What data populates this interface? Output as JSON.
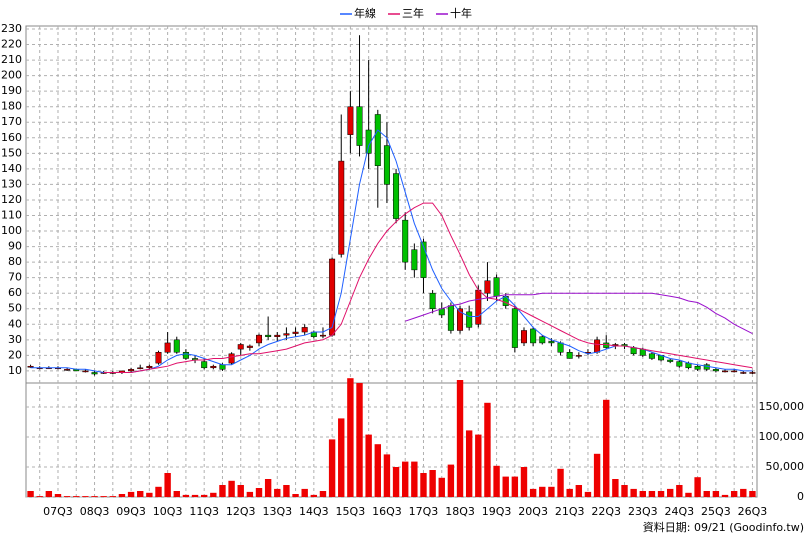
{
  "chart_data": {
    "type": "candlestick",
    "categories": [
      null,
      null,
      null,
      "07Q3",
      null,
      null,
      null,
      "08Q3",
      null,
      null,
      null,
      "09Q3",
      null,
      null,
      null,
      "10Q3",
      null,
      null,
      null,
      "11Q3",
      null,
      null,
      null,
      "12Q3",
      null,
      null,
      null,
      "13Q3",
      null,
      null,
      null,
      "14Q3",
      null,
      null,
      null,
      "15Q3",
      null,
      null,
      null,
      "16Q3",
      null,
      null,
      null,
      "17Q3",
      null,
      null,
      null,
      "18Q3",
      null,
      null,
      null,
      "19Q3",
      null,
      null,
      null,
      "20Q3",
      null,
      null,
      null,
      "21Q3",
      null,
      null,
      null,
      "22Q3",
      null,
      null,
      null,
      "23Q3",
      null,
      null,
      null,
      "24Q3",
      null,
      null,
      null,
      "25Q3",
      null,
      null,
      null,
      "26Q3"
    ],
    "ohlc": {
      "up_color": "#e00000",
      "down_color": "#00c000",
      "open": [
        13,
        12,
        12,
        12,
        11,
        11,
        10,
        9,
        9,
        9,
        9,
        10,
        12,
        12,
        15,
        22,
        30,
        22,
        18,
        16,
        12,
        14,
        15,
        24,
        25,
        28,
        33,
        32,
        33,
        34,
        35,
        35,
        33,
        33,
        85,
        162,
        180,
        165,
        175,
        155,
        137,
        107,
        88,
        93,
        60,
        50,
        52,
        36,
        48,
        40,
        60,
        70,
        58,
        50,
        28,
        37,
        32,
        29,
        28,
        22,
        20,
        22,
        22,
        28,
        27,
        27,
        25,
        24,
        21,
        20,
        17,
        16,
        15,
        13,
        14,
        11,
        10,
        10,
        9,
        9
      ],
      "high": [
        14,
        13,
        13,
        13,
        12,
        11,
        11,
        10,
        10,
        10,
        10,
        12,
        14,
        14,
        23,
        35,
        32,
        24,
        20,
        18,
        14,
        15,
        22,
        28,
        27,
        34,
        45,
        35,
        38,
        38,
        40,
        36,
        38,
        83,
        175,
        190,
        226,
        210,
        178,
        170,
        140,
        112,
        92,
        95,
        62,
        54,
        54,
        52,
        52,
        65,
        80,
        72,
        60,
        52,
        38,
        38,
        33,
        31,
        29,
        24,
        22,
        24,
        32,
        33,
        28,
        28,
        26,
        25,
        22,
        20,
        18,
        17,
        16,
        14,
        15,
        12,
        11,
        11,
        10,
        10
      ],
      "low": [
        12,
        11,
        12,
        11,
        10,
        10,
        9,
        7,
        8,
        8,
        8,
        9,
        11,
        11,
        14,
        21,
        21,
        17,
        15,
        11,
        11,
        10,
        14,
        20,
        23,
        26,
        30,
        29,
        30,
        32,
        33,
        31,
        31,
        32,
        83,
        150,
        148,
        140,
        115,
        118,
        105,
        75,
        70,
        60,
        47,
        44,
        34,
        34,
        36,
        38,
        55,
        55,
        50,
        22,
        26,
        26,
        27,
        26,
        20,
        18,
        18,
        20,
        21,
        24,
        24,
        24,
        20,
        19,
        17,
        16,
        15,
        12,
        11,
        10,
        10,
        9,
        9,
        9,
        8,
        8
      ],
      "close": [
        13,
        12,
        12,
        12,
        11,
        10,
        10,
        8,
        9,
        9,
        10,
        11,
        12,
        13,
        22,
        28,
        22,
        18,
        17,
        12,
        13,
        11,
        21,
        27,
        26,
        33,
        32,
        33,
        34,
        35,
        38,
        32,
        33,
        82,
        145,
        180,
        155,
        150,
        142,
        130,
        108,
        80,
        75,
        70,
        50,
        46,
        36,
        50,
        38,
        62,
        68,
        58,
        52,
        25,
        36,
        28,
        28,
        28,
        22,
        18,
        20,
        22,
        30,
        25,
        27,
        26,
        21,
        20,
        18,
        17,
        16,
        13,
        12,
        11,
        11,
        10,
        10,
        10,
        9,
        9
      ]
    },
    "series": [
      {
        "name": "年線",
        "color": "#1f5fff",
        "values": [
          12,
          12,
          12,
          12,
          12,
          11,
          11,
          10,
          9,
          9,
          9,
          9,
          10,
          11,
          13,
          17,
          20,
          21,
          20,
          18,
          16,
          14,
          14,
          17,
          20,
          24,
          27,
          29,
          31,
          32,
          33,
          35,
          35,
          38,
          60,
          95,
          130,
          155,
          165,
          160,
          145,
          125,
          105,
          90,
          75,
          63,
          55,
          48,
          45,
          45,
          50,
          55,
          58,
          52,
          45,
          38,
          33,
          30,
          28,
          26,
          23,
          21,
          22,
          24,
          26,
          26,
          25,
          24,
          22,
          20,
          18,
          17,
          15,
          14,
          13,
          12,
          11,
          11,
          10,
          10
        ]
      },
      {
        "name": "三年",
        "color": "#e0106a",
        "values": [
          null,
          null,
          null,
          null,
          null,
          null,
          null,
          null,
          9,
          9,
          9,
          9,
          10,
          11,
          12,
          13,
          15,
          16,
          17,
          17,
          18,
          18,
          19,
          20,
          21,
          21,
          22,
          23,
          24,
          26,
          28,
          29,
          30,
          33,
          40,
          55,
          70,
          82,
          92,
          100,
          106,
          111,
          115,
          118,
          118,
          110,
          97,
          85,
          72,
          62,
          57,
          56,
          54,
          51,
          48,
          45,
          42,
          39,
          36,
          33,
          30,
          28,
          27,
          27,
          26,
          26,
          25,
          24,
          23,
          22,
          21,
          20,
          19,
          18,
          17,
          16,
          15,
          14,
          13,
          12
        ]
      },
      {
        "name": "十年",
        "color": "#9a10cc",
        "values": [
          null,
          null,
          null,
          null,
          null,
          null,
          null,
          null,
          null,
          null,
          null,
          null,
          null,
          null,
          null,
          null,
          null,
          null,
          null,
          null,
          null,
          null,
          null,
          null,
          null,
          null,
          null,
          null,
          null,
          null,
          null,
          null,
          null,
          null,
          null,
          null,
          null,
          null,
          null,
          null,
          null,
          42,
          44,
          46,
          48,
          50,
          52,
          53,
          55,
          56,
          57,
          58,
          59,
          59,
          59,
          59,
          60,
          60,
          60,
          60,
          60,
          60,
          60,
          60,
          60,
          60,
          60,
          60,
          60,
          59,
          58,
          57,
          55,
          54,
          51,
          47,
          44,
          40,
          37,
          34
        ]
      }
    ],
    "ylim": [
      3.5,
      230
    ],
    "yticks": [
      10,
      20,
      30,
      40,
      50,
      60,
      70,
      80,
      90,
      100,
      110,
      120,
      130,
      140,
      150,
      160,
      170,
      180,
      190,
      200,
      210,
      220,
      230
    ],
    "volume": {
      "color": "#ee0000",
      "values": [
        10000,
        1500,
        10000,
        5000,
        1500,
        1500,
        1500,
        1500,
        1500,
        1500,
        5000,
        8500,
        10000,
        7000,
        17000,
        40000,
        10000,
        3500,
        3500,
        3500,
        7000,
        20000,
        27000,
        20000,
        8500,
        15000,
        30000,
        13500,
        20000,
        5000,
        13500,
        3500,
        10000,
        96000,
        131000,
        198000,
        190000,
        104000,
        88000,
        71000,
        50000,
        59000,
        59000,
        40000,
        45000,
        32000,
        54000,
        195000,
        111000,
        104000,
        157000,
        52000,
        34000,
        34000,
        50000,
        13500,
        17000,
        17000,
        47000,
        13500,
        20000,
        8500,
        72000,
        162000,
        30000,
        20000,
        13500,
        10000,
        10000,
        10000,
        13500,
        20000,
        7000,
        33000,
        10000,
        10000,
        3500,
        10000,
        13500,
        10000
      ],
      "ylim": [
        0,
        185000
      ],
      "yticks": [
        0,
        {
          "value": 50000,
          "label": "50,000"
        },
        {
          "value": 100000,
          "label": "100,000"
        },
        {
          "value": 150000,
          "label": "150,000"
        }
      ]
    },
    "grid": true,
    "source": "資料日期: 09/21  (Goodinfo.tw)"
  }
}
